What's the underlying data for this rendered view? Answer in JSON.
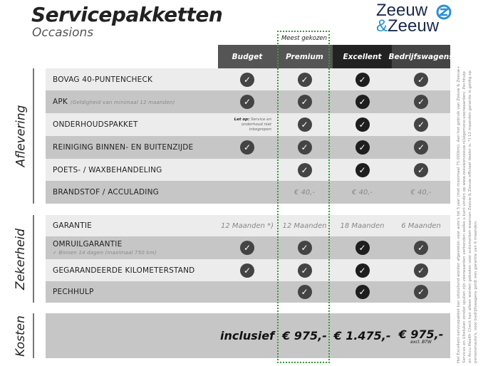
{
  "header": {
    "title": "Servicepakketten",
    "subtitle": "Occasions",
    "logo_text_line1": "Zeeuw",
    "logo_amp": "&",
    "logo_text_line2": "Zeeuw",
    "highlight_badge": "Meest gekozen"
  },
  "colors": {
    "check_dark": "#444444",
    "check_excellent": "#1e1e1e",
    "highlight": "#3a9a3a",
    "logo_accent": "#2a8fd8"
  },
  "columns": [
    {
      "label": "Budget",
      "bg": "#555555"
    },
    {
      "label": "Premium",
      "bg": "#555555"
    },
    {
      "label": "Excellent",
      "bg": "#222222"
    },
    {
      "label": "Bedrijfswagens",
      "bg": "#444444"
    }
  ],
  "sections": [
    {
      "label": "Aflevering",
      "rows": [
        {
          "label": "BOVAG 40-PUNTENCHECK",
          "cells": [
            "check",
            "check",
            "check",
            "check"
          ]
        },
        {
          "label": "APK",
          "sublabel": "(Geldigheid van minimaal 12 maanden)",
          "cells": [
            "check",
            "check",
            "check",
            "check"
          ]
        },
        {
          "label": "ONDERHOUDSPAKKET",
          "note_bold": "Let op:",
          "note": "Service en onderhoud niet inbegrepen",
          "cells": [
            "note",
            "check",
            "check",
            "check"
          ]
        },
        {
          "label": "REINIGING BINNEN- EN BUITENZIJDE",
          "cells": [
            "check",
            "check",
            "check",
            "check"
          ]
        },
        {
          "label": "POETS- / WAXBEHANDELING",
          "cells": [
            "",
            "check",
            "check",
            "check"
          ]
        },
        {
          "label": "BRANDSTOF / ACCULADING",
          "cells": [
            "",
            "€ 40,-",
            "€ 40,-",
            "€ 40,-"
          ]
        }
      ]
    },
    {
      "label": "Zekerheid",
      "rows": [
        {
          "label": "GARANTIE",
          "cells": [
            "12 Maanden *)",
            "12 Maanden",
            "18 Maanden",
            "6 Maanden"
          ]
        },
        {
          "label": "OMRUILGARANTIE",
          "sublabel2": "✓   Binnen 14 dagen (maximaal 750 km)",
          "cells": [
            "check",
            "check",
            "check",
            "check"
          ]
        },
        {
          "label": "GEGARANDEERDE KILOMETERSTAND",
          "cells": [
            "check",
            "check",
            "check",
            "check"
          ]
        },
        {
          "label": "PECHHULP",
          "cells": [
            "",
            "check",
            "check",
            "check"
          ]
        }
      ]
    },
    {
      "label": "Kosten",
      "prices": [
        "inclusief",
        "€ 975,-",
        "€ 1.475,-",
        "€ 975,-"
      ],
      "price_note": "excl. BTW"
    }
  ],
  "footnote": "Het Excellent-servicepakket kan uitsluitend worden afgesloten voor auto's tot 5 jaar (met maximaal 75.000km). Aan het gebruik van Zeeuw & Zeeuw+ Services en Ulteluken zonder spullen zijn voorwaarden verbonden welke u kunt vinden op www.zeeuwenzeeuw.nl/algemene-voorwaarden/. Pechhulp en Accu Health Check kan alleen worden geboden voor automerken waarvan Zeeuw & Zeeuw officieel dealer is. *) 12 maanden garantie is geldig op personenauto's, voor bedrijfswagens geldt een garantie van 6 maanden."
}
